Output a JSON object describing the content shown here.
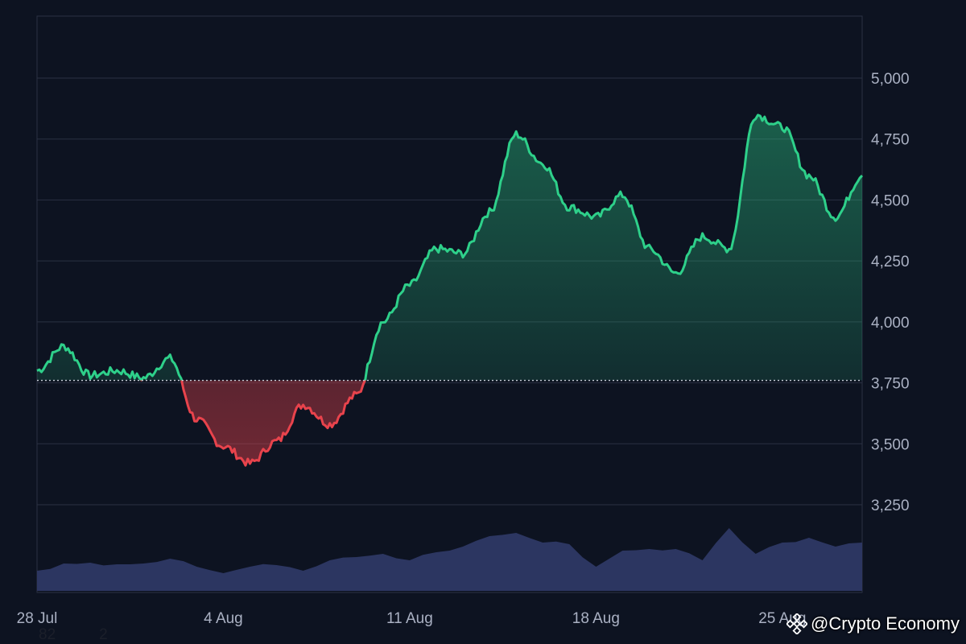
{
  "chart_data": {
    "type": "area",
    "title": "",
    "xlabel": "",
    "ylabel": "",
    "x_ticks": [
      "28 Jul",
      "4 Aug",
      "11 Aug",
      "18 Aug",
      "25 Aug"
    ],
    "y_ticks": [
      "3,250",
      "3,500",
      "3,750",
      "4,000",
      "4,250",
      "4,500",
      "4,750",
      "5,000"
    ],
    "ylim": [
      3250,
      5000
    ],
    "baseline": 3760,
    "colors": {
      "above": "#2ed08a",
      "below": "#e8434c",
      "volume": "#2e3865",
      "grid": "#2a3142",
      "background": "#0d1321"
    },
    "x_range": [
      "2025-07-28",
      "2025-08-28"
    ],
    "series": [
      {
        "x": [
          "2025-07-28",
          "2025-07-29",
          "2025-07-30",
          "2025-07-31",
          "2025-08-01",
          "2025-08-02",
          "2025-08-03",
          "2025-08-04",
          "2025-08-05",
          "2025-08-06",
          "2025-08-07",
          "2025-08-08",
          "2025-08-09",
          "2025-08-10",
          "2025-08-11",
          "2025-08-12",
          "2025-08-13",
          "2025-08-14",
          "2025-08-15",
          "2025-08-16",
          "2025-08-17",
          "2025-08-18",
          "2025-08-19",
          "2025-08-20",
          "2025-08-21",
          "2025-08-22",
          "2025-08-23",
          "2025-08-24",
          "2025-08-25",
          "2025-08-26",
          "2025-08-27",
          "2025-08-28"
        ],
        "values": [
          3800,
          3900,
          3780,
          3800,
          3770,
          3850,
          3600,
          3490,
          3420,
          3510,
          3660,
          3580,
          3700,
          4000,
          4150,
          4300,
          4280,
          4450,
          4770,
          4650,
          4470,
          4430,
          4520,
          4300,
          4200,
          4350,
          4300,
          4850,
          4800,
          4600,
          4430,
          4600
        ]
      }
    ],
    "volume": [
      0.25,
      0.34,
      0.35,
      0.33,
      0.34,
      0.4,
      0.3,
      0.22,
      0.3,
      0.32,
      0.25,
      0.38,
      0.42,
      0.46,
      0.38,
      0.48,
      0.55,
      0.68,
      0.72,
      0.6,
      0.58,
      0.3,
      0.5,
      0.52,
      0.52,
      0.38,
      0.78,
      0.46,
      0.6,
      0.66,
      0.55,
      0.6
    ]
  },
  "watermark": {
    "text": "@Crypto Economy",
    "icon": "binance-logo-icon"
  },
  "stray_text": [
    "82",
    "2"
  ]
}
